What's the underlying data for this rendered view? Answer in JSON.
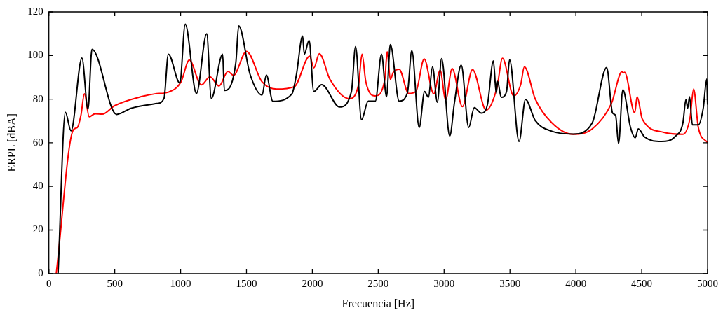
{
  "chart_data": {
    "type": "line",
    "xlabel": "Frecuencia [Hz]",
    "ylabel": "ERPL [dBA]",
    "xlim": [
      0,
      5000
    ],
    "ylim": [
      0,
      120
    ],
    "xticks": [
      0,
      500,
      1000,
      1500,
      2000,
      2500,
      3000,
      3500,
      4000,
      4500,
      5000
    ],
    "yticks": [
      0,
      20,
      40,
      60,
      80,
      100,
      120
    ],
    "series": [
      {
        "color": "#000000",
        "x": [
          70,
          125,
          168,
          251,
          297,
          327,
          514,
          623,
          820,
          874,
          907,
          994,
          1035,
          1120,
          1198,
          1233,
          1319,
          1332,
          1419,
          1441,
          1528,
          1618,
          1651,
          1700,
          1845,
          1879,
          1926,
          1939,
          1975,
          2011,
          2071,
          2207,
          2297,
          2328,
          2373,
          2424,
          2478,
          2525,
          2563,
          2592,
          2659,
          2722,
          2755,
          2811,
          2852,
          2881,
          2912,
          2949,
          2981,
          3043,
          3079,
          3130,
          3187,
          3229,
          3283,
          3329,
          3374,
          3396,
          3406,
          3434,
          3474,
          3497,
          3569,
          3618,
          3691,
          3817,
          3980,
          4125,
          4234,
          4279,
          4302,
          4324,
          4357,
          4415,
          4451,
          4474,
          4523,
          4650,
          4758,
          4813,
          4836,
          4849,
          4863,
          4885,
          4930,
          4967,
          4994,
          5000
        ],
        "values": [
          0,
          74,
          65.5,
          98.8,
          75.4,
          102.8,
          73,
          75.8,
          78,
          80.3,
          100.6,
          87.4,
          114.4,
          82.6,
          110,
          80.3,
          100.6,
          84,
          96.7,
          113.6,
          91.2,
          81.9,
          91,
          79,
          82.4,
          91.2,
          108.9,
          100.6,
          106.9,
          83.5,
          86.6,
          76.4,
          83.6,
          104.1,
          70.6,
          79.1,
          79.1,
          100.6,
          81.1,
          105,
          79.1,
          83,
          102.3,
          67,
          83.5,
          80.8,
          94.8,
          78.6,
          98.6,
          63.1,
          78.6,
          95.6,
          67,
          76.1,
          73.6,
          77.5,
          97.5,
          82.6,
          88.1,
          80.8,
          83.5,
          98.1,
          60.6,
          79.9,
          70.3,
          65.3,
          64,
          69.2,
          94.5,
          73.6,
          72.5,
          59.7,
          84.3,
          67,
          62.3,
          66.4,
          62.6,
          60.6,
          63.1,
          69.2,
          79.9,
          75.8,
          81.1,
          68.2,
          68.2,
          75.8,
          89.2,
          77.5
        ]
      },
      {
        "color": "#ff0000",
        "x": [
          56,
          185,
          216,
          243,
          270,
          306,
          351,
          406,
          496,
          713,
          804,
          912,
          1003,
          1066,
          1157,
          1223,
          1292,
          1359,
          1401,
          1500,
          1618,
          1727,
          1863,
          1980,
          2011,
          2053,
          2134,
          2279,
          2351,
          2377,
          2406,
          2478,
          2550,
          2568,
          2592,
          2614,
          2659,
          2731,
          2786,
          2849,
          2921,
          2970,
          3012,
          3061,
          3139,
          3216,
          3319,
          3401,
          3443,
          3528,
          3582,
          3609,
          3691,
          3817,
          3980,
          4125,
          4270,
          4351,
          4360,
          4370,
          4447,
          4465,
          4505,
          4668,
          4813,
          4867,
          4894,
          4930,
          5000
        ],
        "values": [
          0,
          65.9,
          67,
          72.5,
          82.4,
          71.9,
          73.3,
          73.1,
          76.9,
          81.3,
          82.4,
          83.3,
          87.9,
          97.9,
          86.5,
          90.2,
          86,
          92.7,
          90.9,
          101.9,
          87.9,
          84.6,
          85.7,
          99.7,
          94.3,
          100.8,
          89,
          80.2,
          86.8,
          100.6,
          87.9,
          81.5,
          89,
          101.7,
          89,
          92.3,
          93.7,
          82.6,
          83.5,
          98.4,
          82.4,
          93.2,
          79.7,
          94,
          76.6,
          93.5,
          75,
          85.2,
          98.7,
          81.5,
          86.8,
          94.8,
          80.2,
          69.2,
          63.9,
          66.4,
          78,
          92.6,
          92,
          92.3,
          73.8,
          81.1,
          70.8,
          64.8,
          63.9,
          71.4,
          84.6,
          67,
          60
        ]
      }
    ]
  }
}
